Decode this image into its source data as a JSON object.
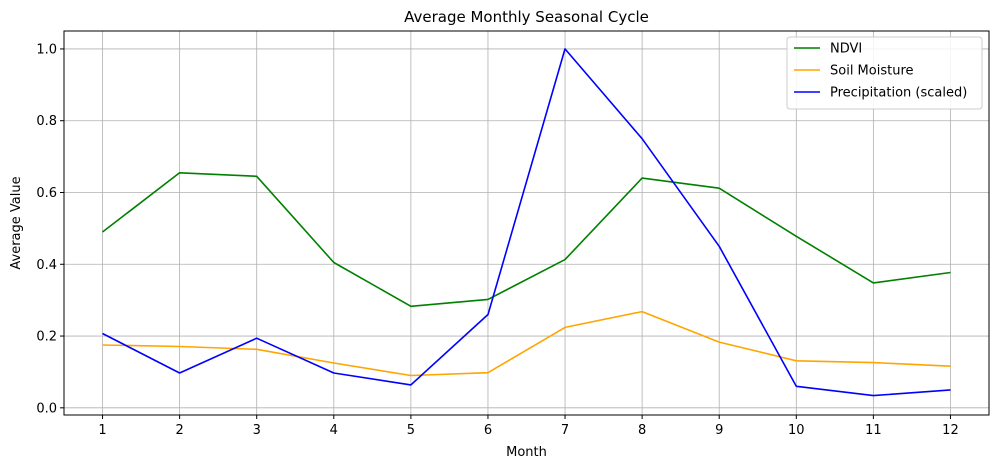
{
  "chart_data": {
    "type": "line",
    "title": "Average Monthly Seasonal Cycle",
    "xlabel": "Month",
    "ylabel": "Average Value",
    "x": [
      1,
      2,
      3,
      4,
      5,
      6,
      7,
      8,
      9,
      10,
      11,
      12
    ],
    "xlim": [
      0.5,
      12.5
    ],
    "ylim": [
      -0.02,
      1.05
    ],
    "yticks": [
      0.0,
      0.2,
      0.4,
      0.6,
      0.8,
      1.0
    ],
    "ytick_labels": [
      "0.0",
      "0.2",
      "0.4",
      "0.6",
      "0.8",
      "1.0"
    ],
    "xtick_labels": [
      "1",
      "2",
      "3",
      "4",
      "5",
      "6",
      "7",
      "8",
      "9",
      "10",
      "11",
      "12"
    ],
    "grid": true,
    "legend_position": "top-right",
    "series": [
      {
        "name": "NDVI",
        "color": "#008000",
        "values": [
          0.49,
          0.655,
          0.645,
          0.405,
          0.283,
          0.302,
          0.413,
          0.64,
          0.612,
          0.478,
          0.348,
          0.377
        ]
      },
      {
        "name": "Soil Moisture",
        "color": "#ffa500",
        "values": [
          0.175,
          0.171,
          0.163,
          0.125,
          0.09,
          0.098,
          0.224,
          0.268,
          0.183,
          0.131,
          0.126,
          0.116
        ]
      },
      {
        "name": "Precipitation (scaled)",
        "color": "#0000ff",
        "values": [
          0.207,
          0.097,
          0.194,
          0.097,
          0.064,
          0.26,
          1.0,
          0.75,
          0.45,
          0.06,
          0.034,
          0.05
        ]
      }
    ]
  }
}
